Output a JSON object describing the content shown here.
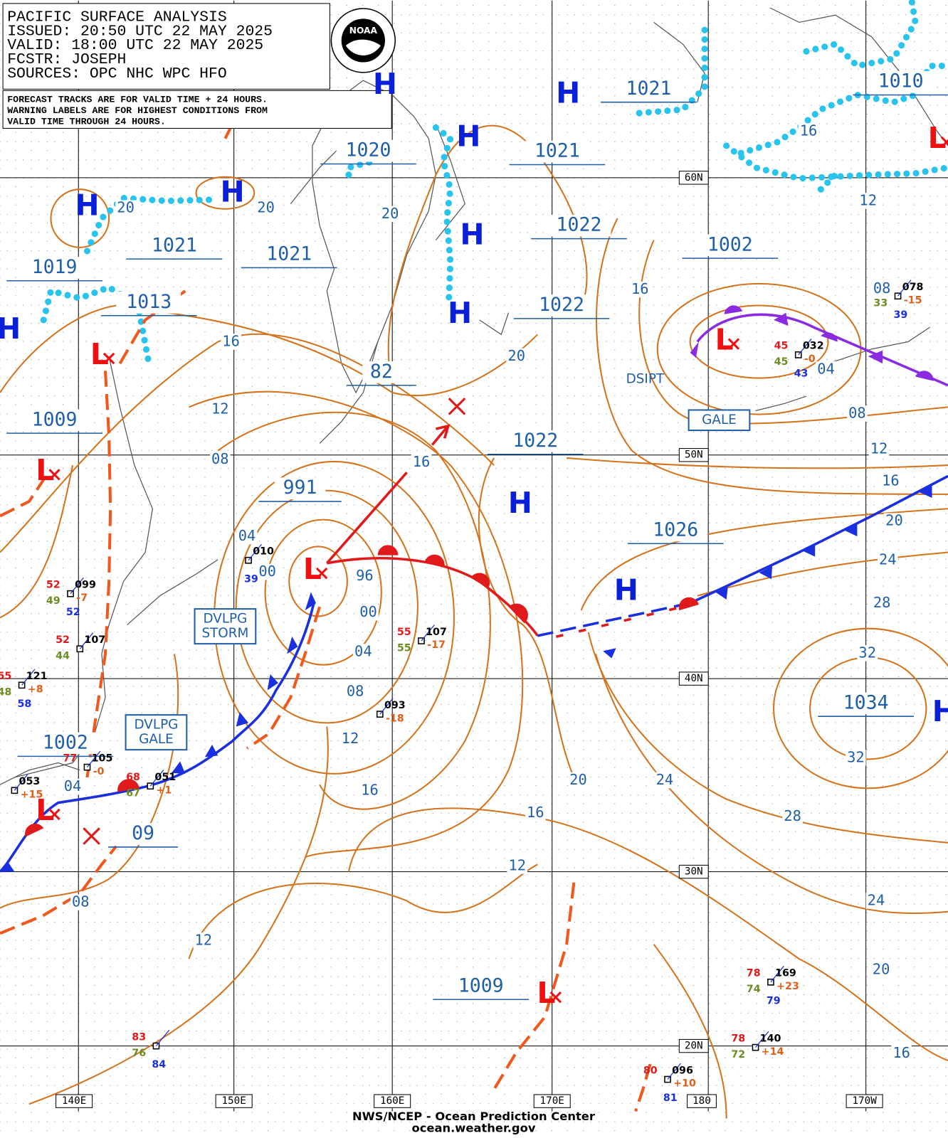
{
  "header": {
    "lines": [
      "PACIFIC SURFACE ANALYSIS",
      "ISSUED: 20:50 UTC 22 MAY 2025",
      "VALID:  18:00 UTC 22 MAY 2025",
      "FCSTR:  JOSEPH",
      "SOURCES: OPC NHC WPC HFO"
    ]
  },
  "notice": {
    "lines": [
      "FORECAST TRACKS ARE FOR VALID TIME + 24 HOURS.",
      "WARNING LABELS ARE FOR HIGHEST CONDITIONS FROM",
      "VALID TIME THROUGH 24 HOURS."
    ]
  },
  "logo": "NOAA",
  "high_symbol": "H",
  "low_symbol": "L",
  "pressure_labels": [
    "1021",
    "1020",
    "1021",
    "1021",
    "1021",
    "1019",
    "1013",
    "1022",
    "1022",
    "82",
    "1009",
    "1002",
    "1010",
    "1022",
    "991",
    "1026",
    "1034",
    "1002",
    "09",
    "1009"
  ],
  "isobar_labels": [
    "20",
    "20",
    "20",
    "16",
    "12",
    "08",
    "16",
    "04",
    "00",
    "96",
    "00",
    "04",
    "08",
    "12",
    "16",
    "20",
    "16",
    "08",
    "04",
    "08",
    "12",
    "16",
    "20",
    "24",
    "28",
    "32",
    "32",
    "24",
    "20",
    "28",
    "16",
    "12",
    "24",
    "20",
    "16",
    "08",
    "12",
    "04",
    "12",
    "16"
  ],
  "grid_labels": [
    "60N",
    "50N",
    "40N",
    "30N",
    "20N",
    "140E",
    "150E",
    "160E",
    "170E",
    "180",
    "170W"
  ],
  "warnings": [
    [
      "DVLPG",
      "STORM"
    ],
    [
      "DVLPG",
      "GALE"
    ],
    [
      "GALE"
    ]
  ],
  "status": "DSIPT",
  "stations": [
    {
      "t": "52",
      "p": "099",
      "tend": "-7",
      "td": "49",
      "sst": "52"
    },
    {
      "t": "55",
      "p": "121",
      "tend": "+8",
      "td": "48",
      "sst": "58"
    },
    {
      "t": "52",
      "p": "107",
      "td": "44"
    },
    {
      "t": "55",
      "p": "107",
      "tend": "-17",
      "td": "55"
    },
    {
      "p": "093",
      "tend": "-18"
    },
    {
      "t": "77",
      "p": "105",
      "tend": "-0"
    },
    {
      "t": "68",
      "p": "051",
      "tend": "+1",
      "td": "67"
    },
    {
      "t": "45",
      "p": "032",
      "tend": "-0",
      "td": "45",
      "sst": "43"
    },
    {
      "p": "078",
      "tend": "-15",
      "td": "33",
      "sst": "39"
    },
    {
      "t": "78",
      "p": "169",
      "tend": "+23",
      "td": "74",
      "sst": "79"
    },
    {
      "t": "78",
      "p": "140",
      "tend": "+14",
      "td": "72"
    },
    {
      "t": "83",
      "td": "76",
      "sst": "84"
    },
    {
      "t": "80",
      "p": "096",
      "tend": "+10",
      "sst": "81"
    },
    {
      "p": "010",
      "sst": "39"
    },
    {
      "p": "053",
      "tend": "+15"
    }
  ],
  "footer": [
    "NWS/NCEP - Ocean Prediction Center",
    "ocean.weather.gov"
  ]
}
